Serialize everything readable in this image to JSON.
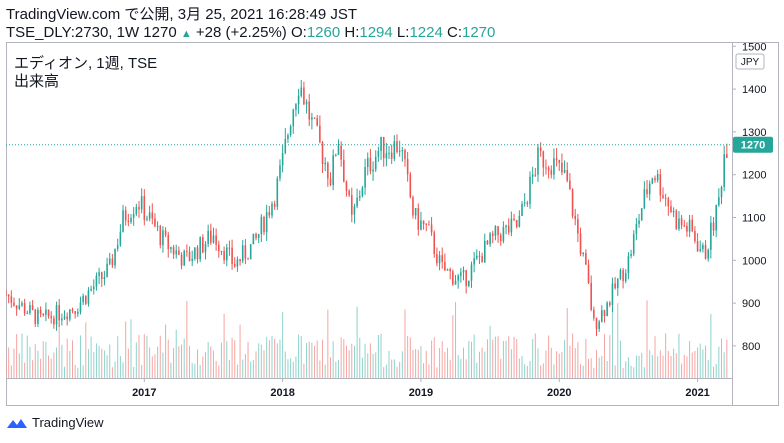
{
  "header": {
    "line1": "TradingView.com で公開, 3月 25, 2021 16:28:49 JST",
    "symbol": "TSE_DLY:2730, 1W",
    "last": "1270",
    "change": "+28 (+2.25%)",
    "o_label": "O:",
    "o_value": "1260",
    "h_label": "H:",
    "h_value": "1294",
    "l_label": "L:",
    "l_value": "1224",
    "c_label": "C:",
    "c_value": "1270"
  },
  "legend": {
    "title": "エディオン, 1週, TSE",
    "volume": "出来高"
  },
  "footer": {
    "brand": "TradingView"
  },
  "colors": {
    "up": "#26a69a",
    "down": "#ef5350",
    "vol_up": "#8fd3cb",
    "vol_down": "#f5a5a2"
  },
  "chart_data": {
    "type": "candlestick",
    "x_ticks": [
      "2017",
      "2018",
      "2019",
      "2020",
      "2021"
    ],
    "y_ticks": [
      800,
      900,
      1000,
      1100,
      1200,
      1300,
      1400,
      1500
    ],
    "ylim": [
      725,
      1510
    ],
    "currency": "JPY",
    "last_price": 1270,
    "last_price_label": "1270",
    "closes": [
      [
        2016.0,
        920
      ],
      [
        2016.25,
        860
      ],
      [
        2016.5,
        890
      ],
      [
        2016.75,
        980
      ],
      [
        2016.85,
        1100
      ],
      [
        2016.95,
        1140
      ],
      [
        2017.15,
        1040
      ],
      [
        2017.3,
        1000
      ],
      [
        2017.5,
        1060
      ],
      [
        2017.65,
        990
      ],
      [
        2017.8,
        1040
      ],
      [
        2017.95,
        1160
      ],
      [
        2018.0,
        1230
      ],
      [
        2018.06,
        1340
      ],
      [
        2018.12,
        1420
      ],
      [
        2018.2,
        1330
      ],
      [
        2018.35,
        1190
      ],
      [
        2018.4,
        1290
      ],
      [
        2018.5,
        1090
      ],
      [
        2018.6,
        1210
      ],
      [
        2018.7,
        1260
      ],
      [
        2018.85,
        1270
      ],
      [
        2018.95,
        1100
      ],
      [
        2019.05,
        1070
      ],
      [
        2019.15,
        980
      ],
      [
        2019.3,
        950
      ],
      [
        2019.45,
        1020
      ],
      [
        2019.55,
        1060
      ],
      [
        2019.7,
        1080
      ],
      [
        2019.85,
        1240
      ],
      [
        2019.95,
        1230
      ],
      [
        2020.05,
        1190
      ],
      [
        2020.2,
        960
      ],
      [
        2020.25,
        850
      ],
      [
        2020.35,
        900
      ],
      [
        2020.5,
        1000
      ],
      [
        2020.6,
        1130
      ],
      [
        2020.68,
        1210
      ],
      [
        2020.78,
        1140
      ],
      [
        2020.85,
        1090
      ],
      [
        2020.95,
        1070
      ],
      [
        2021.05,
        1010
      ],
      [
        2021.15,
        1130
      ],
      [
        2021.2,
        1270
      ]
    ]
  }
}
